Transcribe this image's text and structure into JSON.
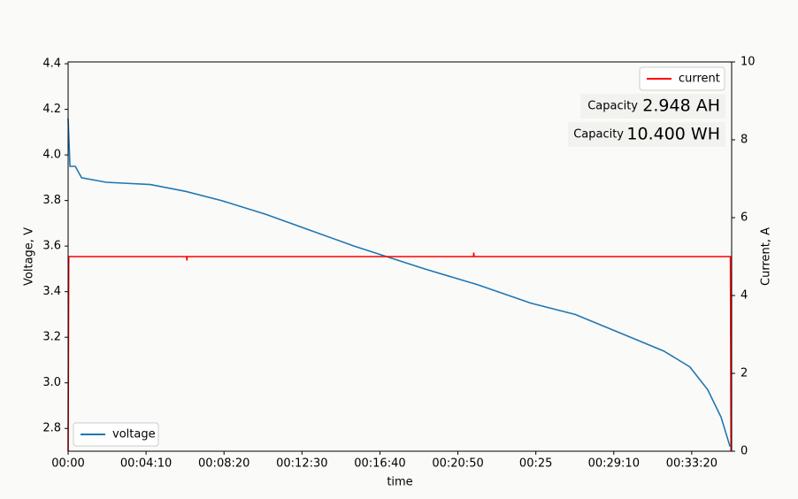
{
  "chart_data": {
    "type": "line",
    "xlabel": "time",
    "ylabel": "Voltage, V",
    "y2label": "Current, A",
    "xlim": [
      0,
      2128
    ],
    "xticks": [
      {
        "value": 0,
        "label": "00:00"
      },
      {
        "value": 250,
        "label": "00:04:10"
      },
      {
        "value": 500,
        "label": "00:08:20"
      },
      {
        "value": 750,
        "label": "00:12:30"
      },
      {
        "value": 1000,
        "label": "00:16:40"
      },
      {
        "value": 1250,
        "label": "00:20:50"
      },
      {
        "value": 1500,
        "label": "00:25"
      },
      {
        "value": 1750,
        "label": "00:29:10"
      },
      {
        "value": 2000,
        "label": "00:33:20"
      }
    ],
    "ylim": [
      2.7,
      4.408
    ],
    "yticks": [
      2.8,
      {
        "value": 3,
        "label": "3.0"
      },
      3.2,
      3.4,
      3.6,
      3.8,
      {
        "value": 4,
        "label": "4.0"
      },
      4.2,
      4.4
    ],
    "y2lim": [
      0,
      10
    ],
    "y2ticks": [
      0,
      2,
      4,
      6,
      8,
      10
    ],
    "series": [
      {
        "name": "voltage",
        "color": "#1f77b4",
        "legend": "lower left",
        "x": [
          0,
          6,
          23,
          43,
          122,
          264,
          377,
          491,
          633,
          775,
          917,
          1030,
          1143,
          1314,
          1484,
          1626,
          1768,
          1910,
          1994,
          2051,
          2094,
          2123
        ],
        "values": [
          4.16,
          3.95,
          3.95,
          3.9,
          3.88,
          3.87,
          3.84,
          3.8,
          3.74,
          3.67,
          3.6,
          3.55,
          3.5,
          3.43,
          3.35,
          3.3,
          3.22,
          3.14,
          3.07,
          2.97,
          2.85,
          2.72
        ]
      },
      {
        "name": "current",
        "color": "#ff0000",
        "axis": "y2",
        "legend": "upper right",
        "x": [
          0,
          2,
          380,
          381,
          382,
          1300,
          1301,
          1302,
          2124,
          2126
        ],
        "values": [
          0,
          5,
          5,
          4.9,
          5,
          5,
          5.1,
          5,
          5,
          0
        ]
      }
    ],
    "annotations": [
      {
        "label": "Capacity",
        "value": "2.948 AH"
      },
      {
        "label": "Capacity",
        "value": "10.400 WH"
      }
    ]
  }
}
